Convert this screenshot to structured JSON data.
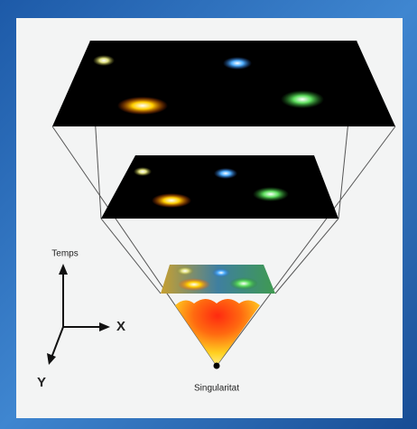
{
  "labels": {
    "time_axis": "Temps",
    "x_axis": "X",
    "y_axis": "Y",
    "singularity": "Singularitat"
  }
}
